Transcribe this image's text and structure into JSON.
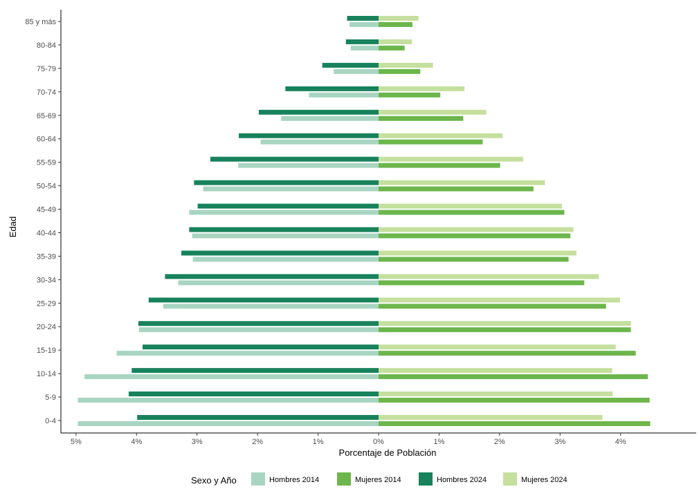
{
  "chart_data": {
    "type": "bar",
    "orientation": "horizontal",
    "diverging": true,
    "categories": [
      "0-4",
      "5-9",
      "10-14",
      "15-19",
      "20-24",
      "25-29",
      "30-34",
      "35-39",
      "40-44",
      "45-49",
      "50-54",
      "55-59",
      "60-64",
      "65-69",
      "70-74",
      "75-79",
      "80-84",
      "85 y más"
    ],
    "series": [
      {
        "name": "Hombres 2014",
        "side": "left",
        "color": "#a8d5c1",
        "values": [
          4.97,
          4.97,
          4.86,
          4.33,
          3.96,
          3.56,
          3.31,
          3.07,
          3.08,
          3.13,
          2.9,
          2.32,
          1.95,
          1.61,
          1.15,
          0.74,
          0.46,
          0.48
        ]
      },
      {
        "name": "Mujeres 2014",
        "side": "right",
        "color": "#6cb64c",
        "values": [
          4.49,
          4.48,
          4.45,
          4.25,
          4.17,
          3.76,
          3.4,
          3.14,
          3.17,
          3.07,
          2.56,
          2.01,
          1.72,
          1.4,
          1.02,
          0.69,
          0.43,
          0.56
        ]
      },
      {
        "name": "Hombres 2024",
        "side": "left",
        "color": "#17825c",
        "values": [
          3.99,
          4.13,
          4.08,
          3.9,
          3.97,
          3.8,
          3.53,
          3.26,
          3.13,
          2.99,
          3.05,
          2.78,
          2.31,
          1.98,
          1.54,
          0.93,
          0.54,
          0.52
        ]
      },
      {
        "name": "Mujeres 2024",
        "side": "right",
        "color": "#c5df9e",
        "values": [
          3.7,
          3.87,
          3.86,
          3.92,
          4.17,
          3.99,
          3.64,
          3.27,
          3.22,
          3.03,
          2.75,
          2.39,
          2.05,
          1.78,
          1.42,
          0.9,
          0.55,
          0.66
        ]
      }
    ],
    "xlabel": "Porcentaje de Población",
    "ylabel": "Edad",
    "xlim": [
      -5.25,
      5.25
    ],
    "x_ticks": [
      -5,
      -4,
      -3,
      -2,
      -1,
      0,
      1,
      2,
      3,
      4
    ],
    "x_tick_labels": [
      "5%",
      "4%",
      "3%",
      "2%",
      "1%",
      "0%",
      "1%",
      "2%",
      "3%",
      "4%"
    ],
    "legend_title": "Sexo y Año",
    "legend_position": "bottom",
    "grid": false
  }
}
